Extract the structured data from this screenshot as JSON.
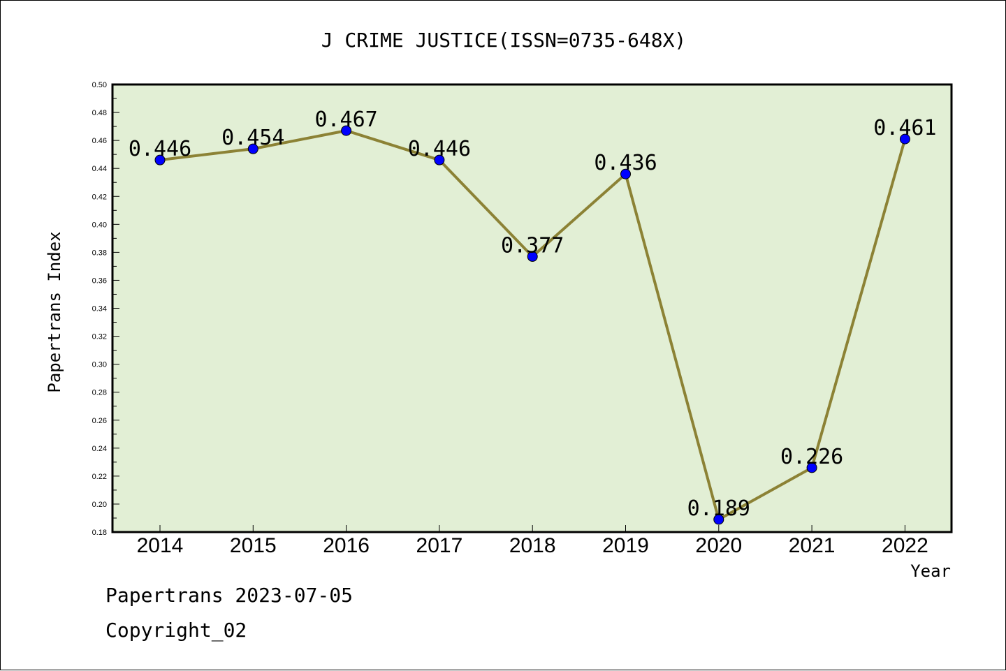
{
  "chart_data": {
    "type": "line",
    "title": "J CRIME JUSTICE(ISSN=0735-648X)",
    "xlabel": "Year",
    "ylabel": "Papertrans Index",
    "categories": [
      "2014",
      "2015",
      "2016",
      "2017",
      "2018",
      "2019",
      "2020",
      "2021",
      "2022"
    ],
    "series": [
      {
        "values": [
          0.446,
          0.454,
          0.467,
          0.446,
          0.377,
          0.436,
          0.189,
          0.226,
          0.461
        ],
        "labels": [
          "0.446",
          "0.454",
          "0.467",
          "0.446",
          "0.377",
          "0.436",
          "0.189",
          "0.226",
          "0.461"
        ]
      }
    ],
    "ylim": [
      0.18,
      0.5
    ],
    "yticks": [
      "0.18",
      "0.20",
      "0.22",
      "0.24",
      "0.26",
      "0.28",
      "0.30",
      "0.32",
      "0.34",
      "0.36",
      "0.38",
      "0.40",
      "0.42",
      "0.44",
      "0.46",
      "0.48",
      "0.50"
    ],
    "grid": false,
    "colors": {
      "plot_background": "#e2efd5",
      "line": "#8c8235",
      "marker": "#0000ff"
    }
  },
  "footer": {
    "line1": "Papertrans 2023-07-05",
    "line2": "Copyright_02"
  }
}
